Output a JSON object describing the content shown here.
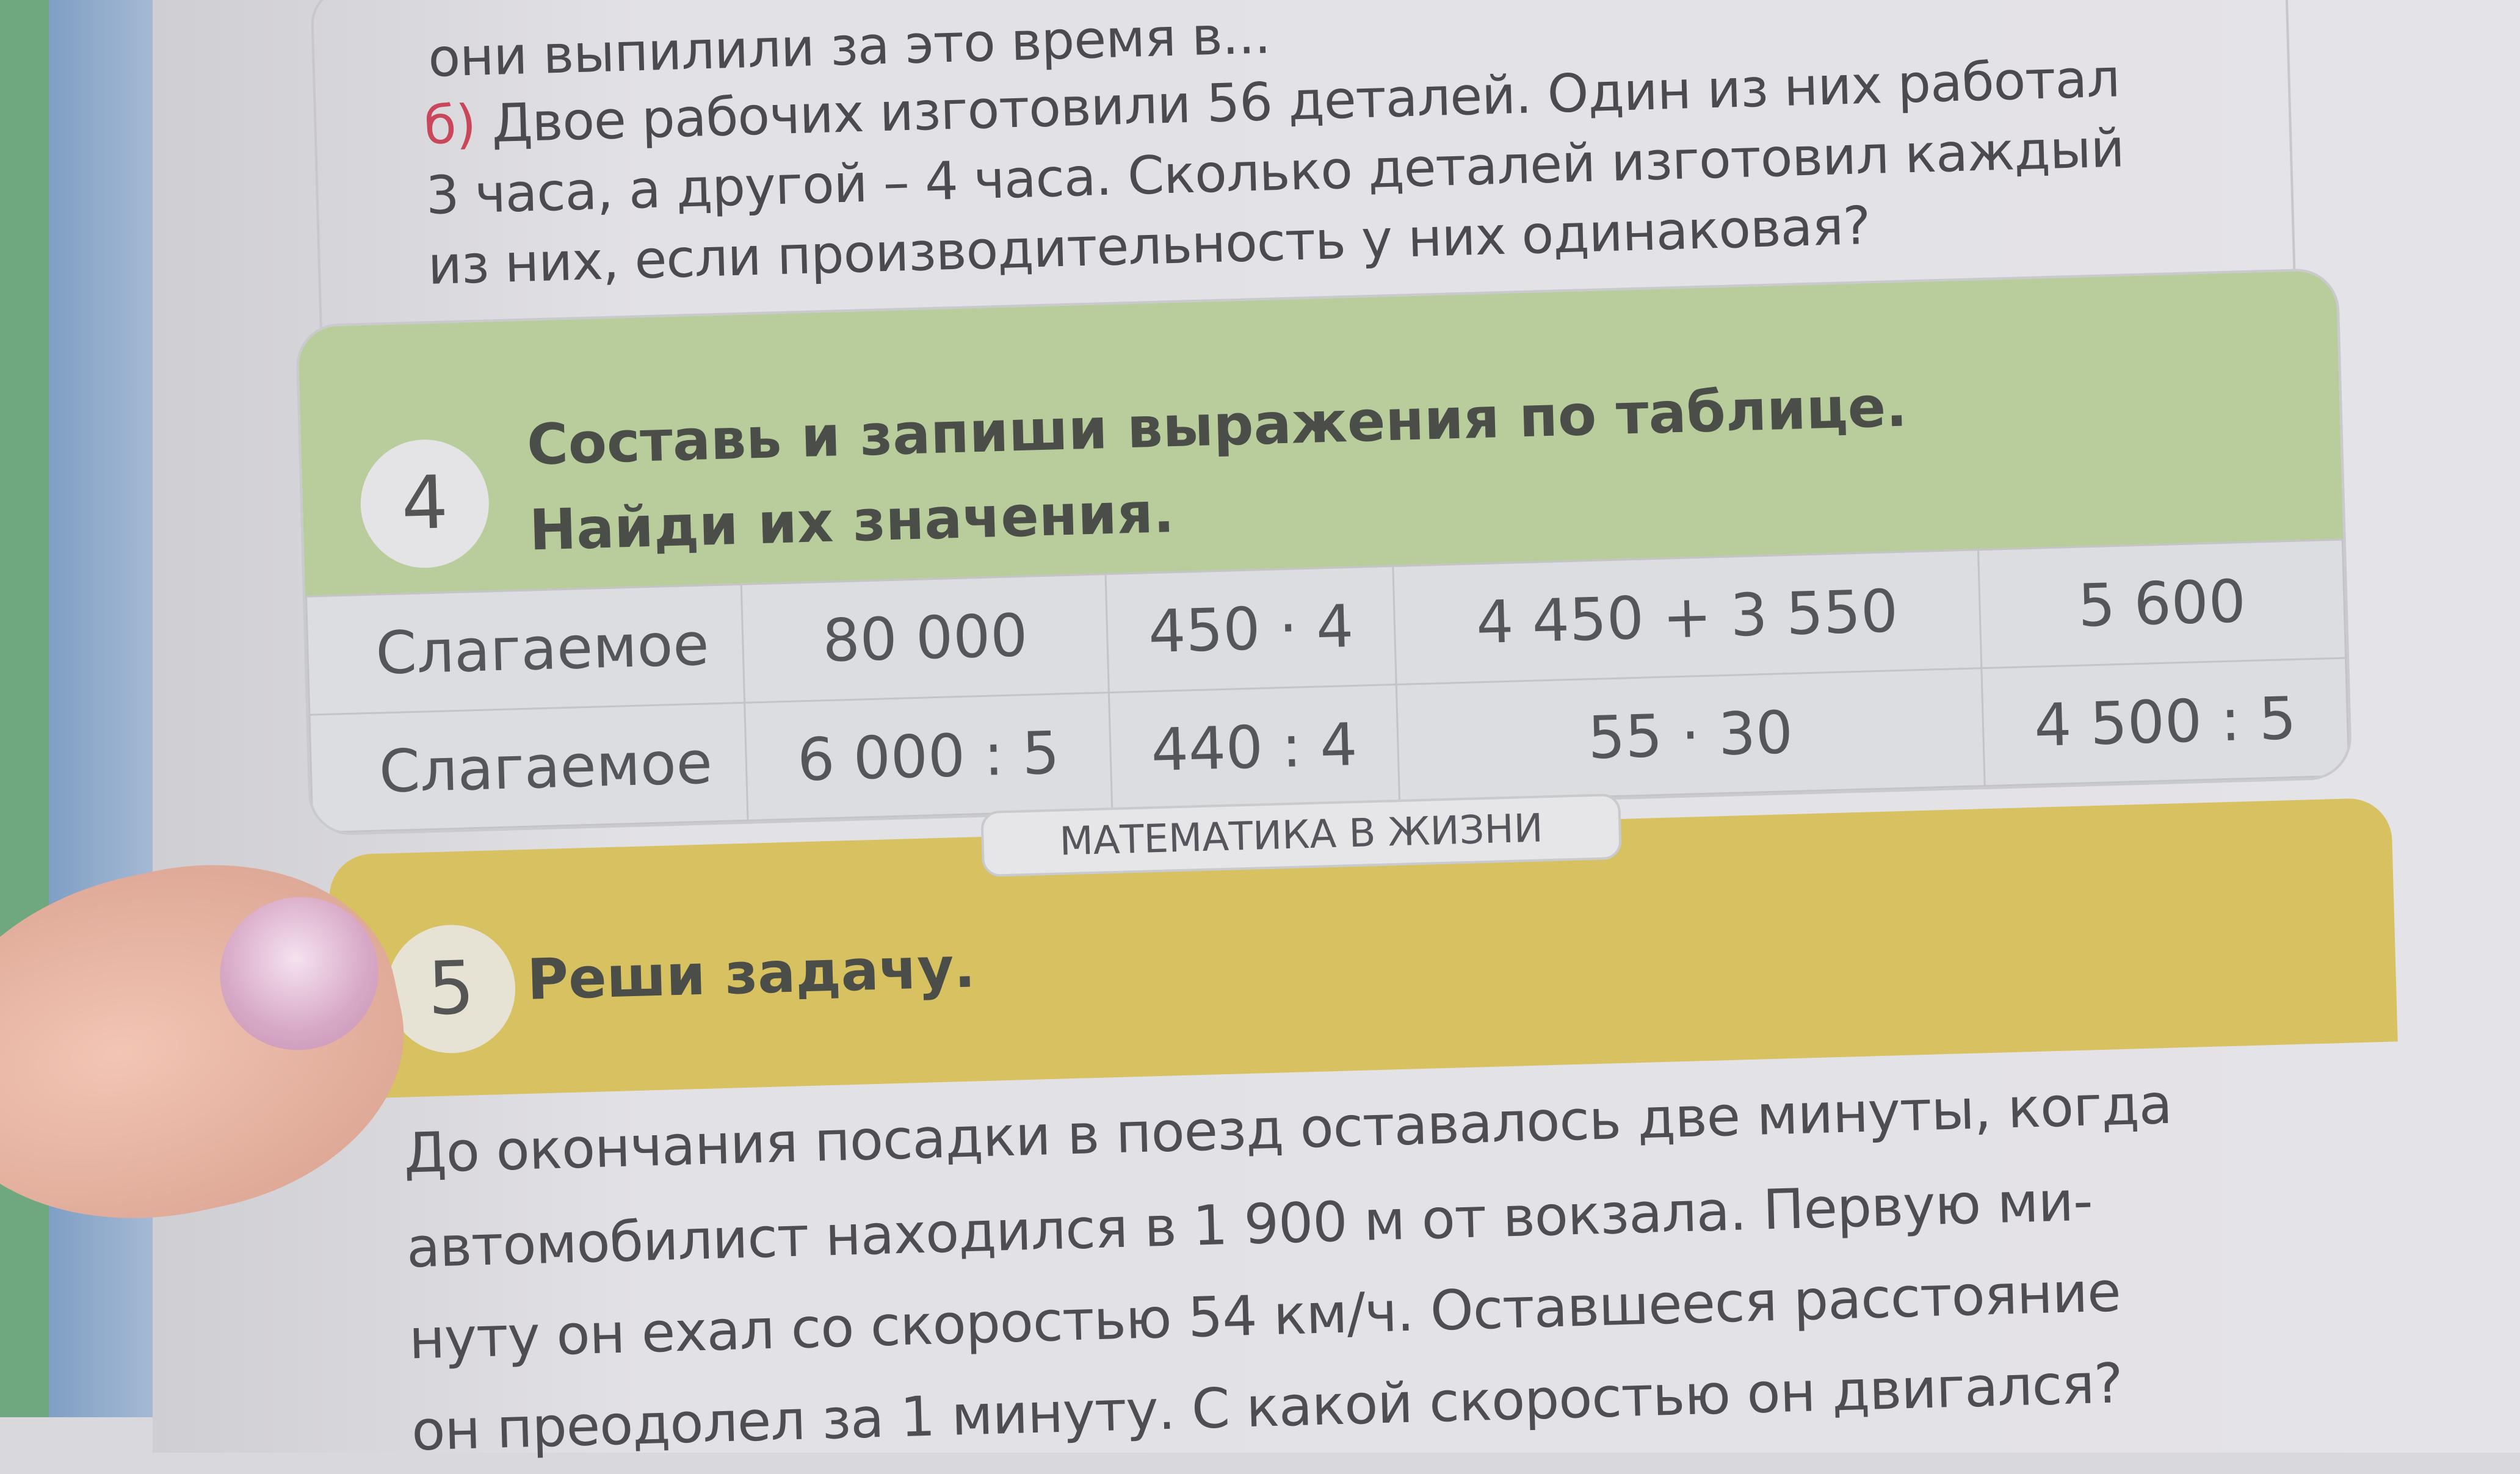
{
  "top_task": {
    "line0": "они выпилили за это время в...",
    "item_marker": "б)",
    "line1": "Двое рабочих изготовили 56 деталей. Один из них работал",
    "line2": "3 часа, а другой – 4 часа. Сколько деталей изготовил каждый",
    "line3": "из них, если производительность у них одинаковая?"
  },
  "task4": {
    "number": "4",
    "title_line1": "Составь и запиши выражения по таблице.",
    "title_line2": "Найди их значения.",
    "table": {
      "rows": [
        [
          "Слагаемое",
          "80 000",
          "450 · 4",
          "4 450 + 3 550",
          "5 600"
        ],
        [
          "Слагаемое",
          "6 000 : 5",
          "440 : 4",
          "55 · 30",
          "4 500 : 5"
        ]
      ]
    },
    "header_color": "#b9cd9c"
  },
  "section_banner": "МАТЕМАТИКА В ЖИЗНИ",
  "task5": {
    "number": "5",
    "title": "Реши задачу.",
    "header_color": "#d7c160",
    "lines": [
      "До окончания посадки в поезд оставалось две минуты, когда",
      "автомобилист находился в 1 900 м от вокзала. Первую ми-",
      "нуту он ехал со скоростью 54 км/ч. Оставшееся расстояние",
      "он преодолел за 1 минуту. С какой скоростью он двигался?"
    ]
  }
}
